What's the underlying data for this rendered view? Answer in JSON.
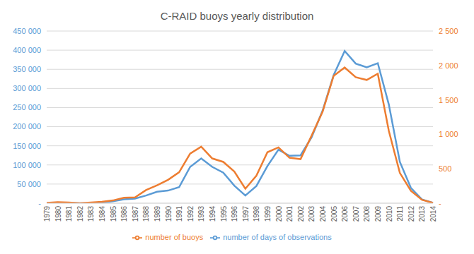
{
  "chart_data": {
    "type": "line",
    "title": "C-RAID buoys yearly distribution",
    "categories": [
      "1979",
      "1980",
      "1981",
      "1982",
      "1983",
      "1984",
      "1985",
      "1986",
      "1987",
      "1988",
      "1989",
      "1990",
      "1991",
      "1992",
      "1993",
      "1994",
      "1995",
      "1996",
      "1997",
      "1998",
      "1999",
      "2000",
      "2001",
      "2002",
      "2003",
      "2004",
      "2005",
      "2006",
      "2007",
      "2008",
      "2009",
      "2010",
      "2011",
      "2012",
      "2013",
      "2014"
    ],
    "series": [
      {
        "name": "number of days of observations",
        "color": "#5b9bd5",
        "axis": "y",
        "values": [
          0,
          1000,
          1000,
          0,
          500,
          2000,
          5000,
          10000,
          12000,
          20000,
          30000,
          33000,
          42000,
          95000,
          117000,
          95000,
          80000,
          46000,
          20000,
          45000,
          97000,
          140000,
          124000,
          125000,
          172000,
          242000,
          335000,
          398000,
          365000,
          355000,
          366000,
          258000,
          108000,
          40000,
          10000,
          1000
        ]
      },
      {
        "name": "number of buoys",
        "color": "#ed7d31",
        "axis": "y2",
        "values": [
          5,
          15,
          10,
          0,
          10,
          20,
          40,
          80,
          85,
          190,
          260,
          340,
          450,
          720,
          820,
          650,
          600,
          460,
          210,
          400,
          740,
          810,
          660,
          640,
          980,
          1330,
          1850,
          1970,
          1830,
          1790,
          1880,
          1050,
          440,
          180,
          50,
          5
        ]
      }
    ],
    "ylim": [
      0,
      450000
    ],
    "yticks": [
      {
        "value": 0,
        "label": "-"
      },
      {
        "value": 50000,
        "label": "50 000"
      },
      {
        "value": 100000,
        "label": "100 000"
      },
      {
        "value": 150000,
        "label": "150 000"
      },
      {
        "value": 200000,
        "label": "200 000"
      },
      {
        "value": 250000,
        "label": "250 000"
      },
      {
        "value": 300000,
        "label": "300 000"
      },
      {
        "value": 350000,
        "label": "350 000"
      },
      {
        "value": 400000,
        "label": "400 000"
      },
      {
        "value": 450000,
        "label": "450 000"
      }
    ],
    "y2lim": [
      0,
      2500
    ],
    "y2ticks": [
      {
        "value": 0,
        "label": "-"
      },
      500,
      {
        "value": 1000,
        "label": "1 000"
      },
      {
        "value": 1500,
        "label": "1 500"
      },
      {
        "value": 2000,
        "label": "2 000"
      },
      {
        "value": 2500,
        "label": "2 500"
      }
    ],
    "grid": true,
    "legend": "bottom"
  }
}
